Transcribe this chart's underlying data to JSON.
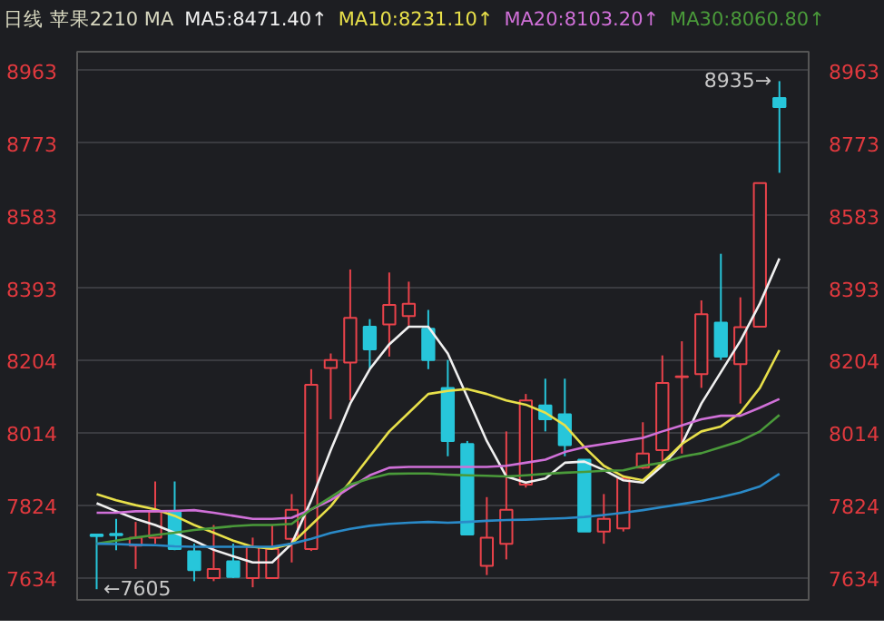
{
  "chart_data": {
    "type": "candlestick",
    "title": "日线 苹果2210 MA",
    "legend": "top",
    "grid": "y",
    "categories": [
      null,
      null,
      null,
      null,
      null,
      null,
      null,
      null,
      null,
      null,
      null,
      null,
      null,
      null,
      null,
      null,
      null,
      null,
      null,
      null,
      null,
      null,
      null,
      null,
      null,
      null,
      null,
      null,
      null,
      null,
      null,
      null,
      null,
      null,
      null,
      null
    ],
    "ohlc": [
      [
        7748,
        7750,
        7605,
        7744
      ],
      [
        7750,
        7789,
        7707,
        7746
      ],
      [
        7719,
        7781,
        7658,
        7740
      ],
      [
        7740,
        7887,
        7724,
        7808
      ],
      [
        7806,
        7887,
        7707,
        7710
      ],
      [
        7704,
        7724,
        7626,
        7655
      ],
      [
        7634,
        7773,
        7626,
        7658
      ],
      [
        7678,
        7724,
        7634,
        7637
      ],
      [
        7634,
        7740,
        7610,
        7715
      ],
      [
        7634,
        7773,
        7634,
        7710
      ],
      [
        7737,
        7854,
        7675,
        7813
      ],
      [
        7710,
        8181,
        7705,
        8140
      ],
      [
        8184,
        8222,
        8050,
        8205
      ],
      [
        8198,
        8442,
        8099,
        8315
      ],
      [
        8292,
        8312,
        8181,
        8233
      ],
      [
        8298,
        8434,
        8214,
        8349
      ],
      [
        8320,
        8410,
        8295,
        8352
      ],
      [
        8287,
        8336,
        8181,
        8205
      ],
      [
        8132,
        8205,
        7953,
        7993
      ],
      [
        7985,
        7993,
        7748,
        7748
      ],
      [
        7666,
        7846,
        7642,
        7740
      ],
      [
        7724,
        8018,
        7683,
        7813
      ],
      [
        7879,
        8116,
        7871,
        8099
      ],
      [
        8086,
        8156,
        8018,
        8050
      ],
      [
        8063,
        8156,
        7953,
        7982
      ],
      [
        7944,
        7944,
        7756,
        7756
      ],
      [
        7756,
        7854,
        7724,
        7789
      ],
      [
        7764,
        7903,
        7756,
        7895
      ],
      [
        7923,
        8042,
        7920,
        7960
      ],
      [
        7969,
        8217,
        7936,
        8145
      ],
      [
        8160,
        8254,
        7960,
        8162
      ],
      [
        8168,
        8361,
        8132,
        8325
      ],
      [
        8303,
        8483,
        8205,
        8214
      ],
      [
        8194,
        8369,
        8091,
        8291
      ],
      [
        8292,
        8668,
        8292,
        8668
      ],
      [
        8891,
        8935,
        8695,
        8867
      ]
    ],
    "colors": [
      "#27c6da",
      "#27c6da",
      "#e8424a",
      "#e8424a",
      "#27c6da",
      "#27c6da",
      "#e8424a",
      "#27c6da",
      "#e8424a",
      "#e8424a",
      "#e8424a",
      "#e8424a",
      "#e8424a",
      "#e8424a",
      "#27c6da",
      "#e8424a",
      "#e8424a",
      "#27c6da",
      "#27c6da",
      "#27c6da",
      "#e8424a",
      "#e8424a",
      "#e8424a",
      "#27c6da",
      "#27c6da",
      "#27c6da",
      "#e8424a",
      "#e8424a",
      "#e8424a",
      "#e8424a",
      "#e8424a",
      "#e8424a",
      "#27c6da",
      "#e8424a",
      "#e8424a",
      "#27c6da"
    ],
    "series": [
      {
        "type": "line",
        "name": "MA5:8471.40↑",
        "color": "#f0f0f0",
        "values": [
          7830,
          7809,
          7789,
          7773,
          7753,
          7732,
          7708,
          7691,
          7675,
          7675,
          7724,
          7838,
          7969,
          8091,
          8181,
          8246,
          8292,
          8292,
          8222,
          8108,
          7993,
          7900,
          7884,
          7895,
          7936,
          7939,
          7917,
          7890,
          7884,
          7928,
          7985,
          8091,
          8173,
          8255,
          8353,
          8471
        ]
      },
      {
        "type": "line",
        "name": "MA10:8231.10↑",
        "color": "#e8e04a",
        "values": [
          7854,
          7838,
          7825,
          7814,
          7797,
          7773,
          7753,
          7732,
          7716,
          7711,
          7724,
          7773,
          7822,
          7887,
          7953,
          8018,
          8067,
          8116,
          8124,
          8129,
          8116,
          8099,
          8088,
          8067,
          8034,
          7977,
          7928,
          7900,
          7890,
          7936,
          7985,
          8018,
          8031,
          8067,
          8132,
          8231
        ]
      },
      {
        "type": "line",
        "name": "MA20:8103.20↑",
        "color": "#d070d8",
        "values": [
          7805,
          7805,
          7809,
          7809,
          7810,
          7812,
          7805,
          7797,
          7789,
          7789,
          7792,
          7814,
          7838,
          7871,
          7903,
          7923,
          7925,
          7925,
          7925,
          7925,
          7925,
          7928,
          7936,
          7944,
          7964,
          7977,
          7985,
          7993,
          8001,
          8018,
          8034,
          8050,
          8059,
          8059,
          8080,
          8103
        ]
      },
      {
        "type": "line",
        "name": "MA30:8060.80↑",
        "color": "#4a9a3a",
        "values": [
          7724,
          7732,
          7740,
          7747,
          7753,
          7760,
          7765,
          7770,
          7773,
          7773,
          7776,
          7814,
          7846,
          7879,
          7895,
          7907,
          7908,
          7908,
          7905,
          7903,
          7902,
          7900,
          7903,
          7907,
          7910,
          7912,
          7915,
          7916,
          7928,
          7936,
          7952,
          7961,
          7977,
          7993,
          8018,
          8061
        ]
      },
      {
        "type": "line",
        "color": "#2a8ac8",
        "values": [
          7724,
          7723,
          7721,
          7720,
          7717,
          7716,
          7716,
          7716,
          7716,
          7716,
          7724,
          7737,
          7752,
          7763,
          7771,
          7776,
          7779,
          7781,
          7779,
          7781,
          7784,
          7786,
          7787,
          7789,
          7791,
          7794,
          7799,
          7805,
          7812,
          7820,
          7828,
          7836,
          7846,
          7858,
          7874,
          7907
        ]
      }
    ],
    "ylim": [
      7577,
      9012
    ],
    "yticks": [
      7634,
      7824,
      8014,
      8204,
      8393,
      8583,
      8773,
      8963
    ],
    "y2lim": [
      7577,
      9012
    ],
    "y2ticks": [
      7634,
      7824,
      8014,
      8204,
      8393,
      8583,
      8773,
      8963
    ],
    "tick_labels": "y",
    "annotations": [
      "8935→",
      "←7605"
    ]
  }
}
